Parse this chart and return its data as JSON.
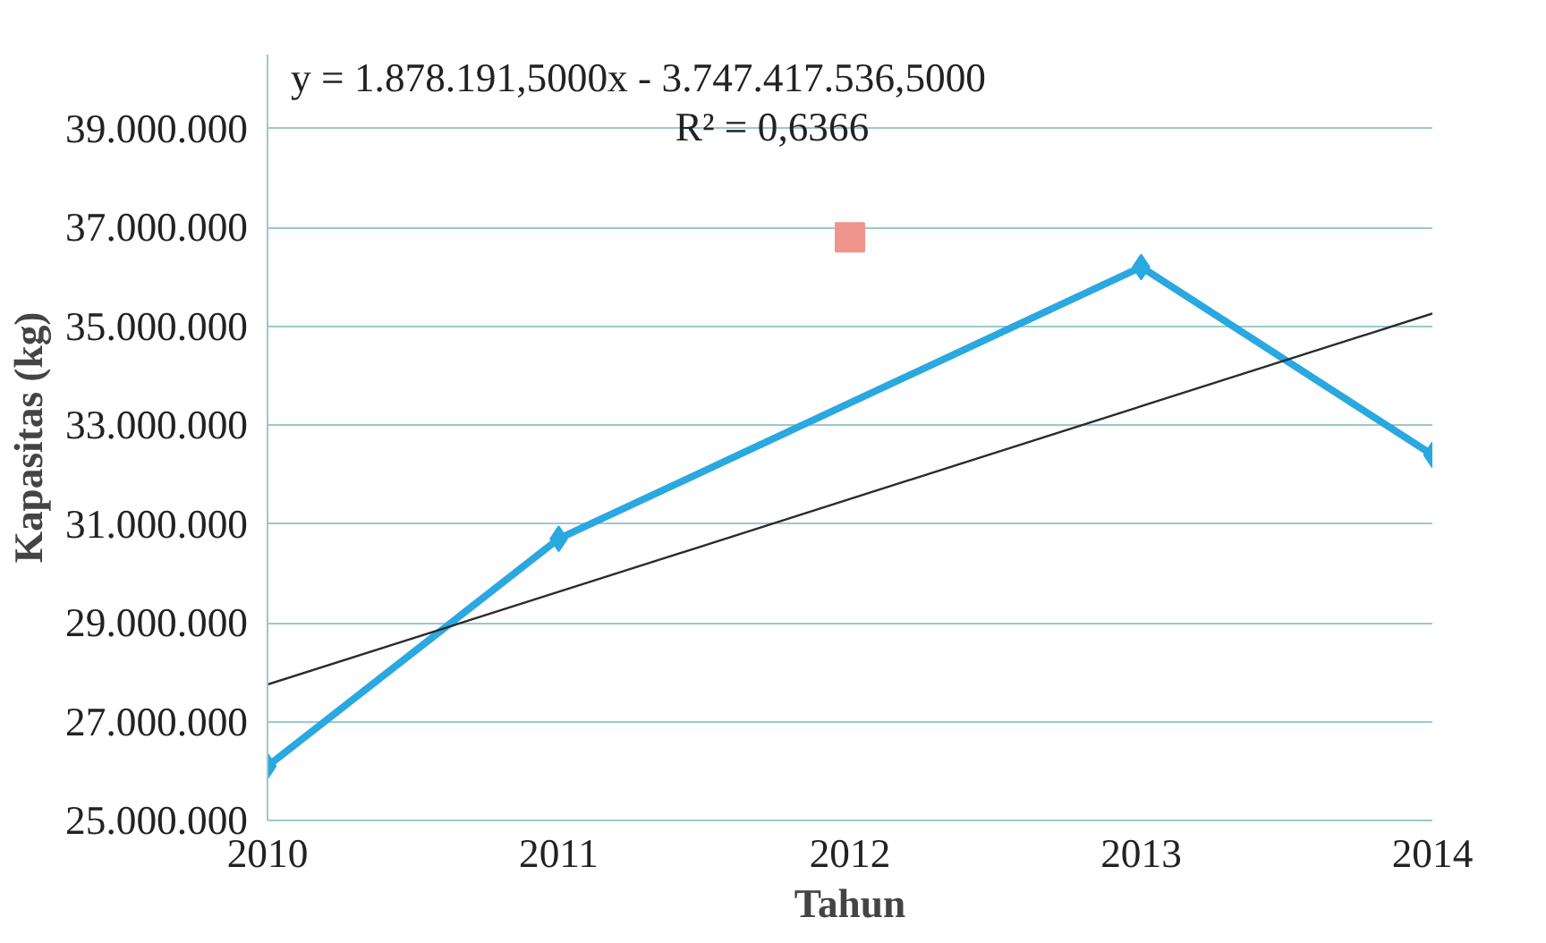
{
  "chart_data": {
    "type": "line",
    "xlabel": "Tahun",
    "ylabel": "Kapasitas (kg)",
    "xlim": [
      2010,
      2014
    ],
    "xticks": [
      2010,
      2011,
      2012,
      2013,
      2014
    ],
    "ylim": [
      25000000,
      40500000
    ],
    "yticks": [
      {
        "value": 25000000,
        "label": "25.000.000"
      },
      {
        "value": 27000000,
        "label": "27.000.000"
      },
      {
        "value": 29000000,
        "label": "29.000.000"
      },
      {
        "value": 31000000,
        "label": "31.000.000"
      },
      {
        "value": 33000000,
        "label": "33.000.000"
      },
      {
        "value": 35000000,
        "label": "35.000.000"
      },
      {
        "value": 37000000,
        "label": "37.000.000"
      },
      {
        "value": 39000000,
        "label": "39.000.000"
      }
    ],
    "grid": "y",
    "marker": "diamond",
    "line_style": "solid",
    "series": [
      {
        "color": "#2aa8e0",
        "x": [
          2010,
          2011,
          2013,
          2014
        ],
        "values": [
          26100000,
          30700000,
          36200000,
          32400000
        ]
      },
      {
        "color": "#2b2b2b",
        "marker": "none",
        "x": [
          2010,
          2014
        ],
        "values": [
          27750000,
          35260000
        ]
      },
      {
        "type": "scatter",
        "color": "#f0958c",
        "marker": "square",
        "x": [
          2012
        ],
        "values": [
          36800000
        ]
      }
    ],
    "annotations": [
      {
        "text": "y = 1.878.191,5000x - 3.747.417.536,5000"
      },
      {
        "text": "R² = 0,6366"
      }
    ]
  }
}
